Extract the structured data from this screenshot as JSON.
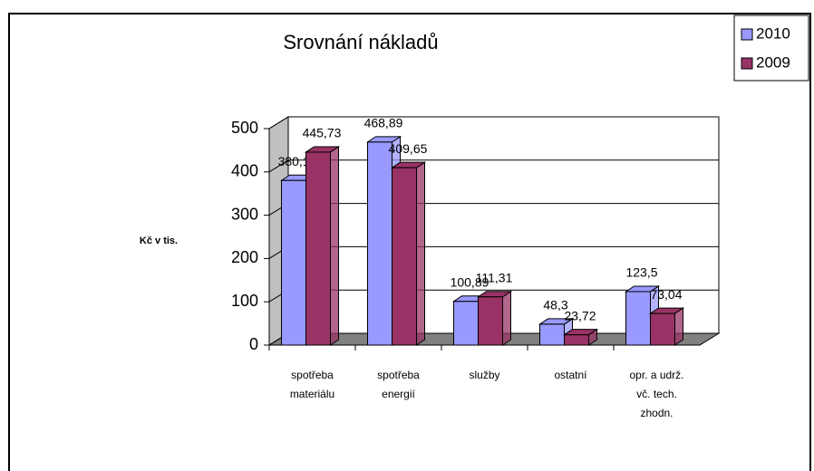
{
  "chart_data": {
    "type": "bar3d",
    "title": "Srovnání  nákladů",
    "ylabel": "Kč v tis.",
    "categories": [
      "spotřeba\nmateriálu",
      "spotřeba\nenergií",
      "služby",
      "ostatní",
      "opr. a udrž.\nvč. tech.\nzhodn."
    ],
    "series": [
      {
        "name": "2010",
        "color": "#9999ff",
        "values": [
          380.19,
          468.89,
          100.89,
          48.3,
          123.5
        ],
        "value_labels": [
          "380,19",
          "468,89",
          "100,89",
          "48,3",
          "123,5"
        ]
      },
      {
        "name": "2009",
        "color": "#993366",
        "values": [
          445.73,
          409.65,
          111.31,
          23.72,
          73.04
        ],
        "value_labels": [
          "445,73",
          "409,65",
          "111,31",
          "23,72",
          "73,04"
        ]
      }
    ],
    "ylim": [
      0,
      500
    ],
    "yticks": [
      0,
      100,
      200,
      300,
      400,
      500
    ],
    "grid": true,
    "legend": "top-right"
  }
}
